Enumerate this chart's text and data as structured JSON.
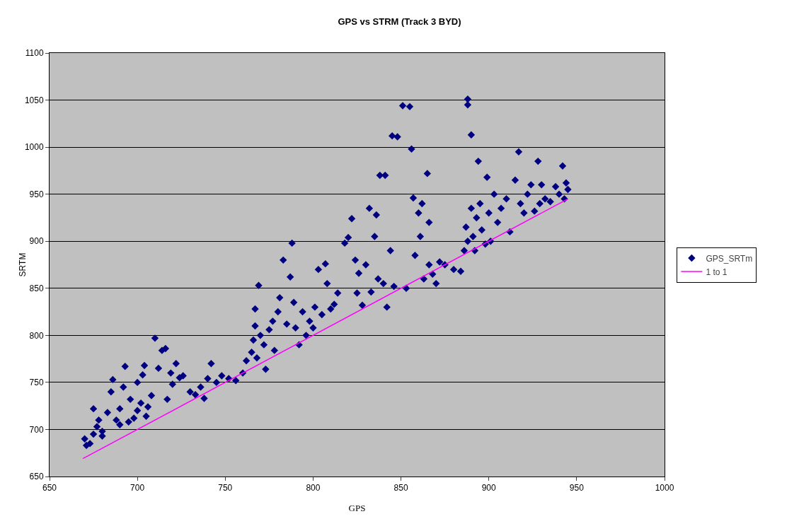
{
  "chart_data": {
    "type": "scatter",
    "title": "GPS vs STRM (Track 3 BYD)",
    "xlabel": "GPS",
    "ylabel": "SRTM",
    "xlim": [
      650,
      1000
    ],
    "xticks": [
      650,
      700,
      750,
      800,
      850,
      900,
      950,
      1000
    ],
    "ylim": [
      650,
      1100
    ],
    "yticks": [
      650,
      700,
      750,
      800,
      850,
      900,
      950,
      1000,
      1050,
      1100
    ],
    "grid": "y",
    "legend": "right",
    "marker": "diamond",
    "series": [
      {
        "name": "GPS_SRTm",
        "color": "#000080",
        "x": [
          670,
          671,
          673,
          675,
          675,
          677,
          678,
          680,
          680,
          683,
          685,
          686,
          688,
          690,
          690,
          692,
          693,
          695,
          696,
          698,
          700,
          700,
          702,
          703,
          704,
          705,
          706,
          708,
          710,
          712,
          714,
          716,
          717,
          719,
          720,
          722,
          724,
          726,
          730,
          733,
          736,
          738,
          740,
          742,
          745,
          748,
          752,
          756,
          760,
          762,
          765,
          766,
          767,
          767,
          768,
          769,
          770,
          772,
          773,
          775,
          777,
          778,
          780,
          781,
          783,
          785,
          787,
          788,
          789,
          790,
          792,
          794,
          796,
          798,
          800,
          801,
          803,
          805,
          807,
          808,
          810,
          812,
          814,
          818,
          820,
          822,
          824,
          825,
          826,
          828,
          830,
          832,
          833,
          835,
          836,
          837,
          838,
          840,
          841,
          842,
          844,
          845,
          846,
          848,
          851,
          853,
          855,
          856,
          857,
          858,
          860,
          861,
          862,
          863,
          865,
          866,
          866,
          868,
          870,
          872,
          875,
          880,
          884,
          886,
          887,
          888,
          888,
          888,
          890,
          890,
          891,
          892,
          893,
          894,
          895,
          896,
          898,
          899,
          900,
          901,
          903,
          905,
          907,
          910,
          912,
          915,
          917,
          918,
          920,
          922,
          924,
          926,
          928,
          929,
          930,
          932,
          935,
          938,
          940,
          942,
          943,
          944,
          945
        ],
        "values": [
          690,
          683,
          685,
          695,
          722,
          703,
          710,
          698,
          693,
          718,
          740,
          753,
          710,
          705,
          722,
          745,
          767,
          708,
          732,
          712,
          720,
          750,
          728,
          758,
          768,
          714,
          724,
          736,
          797,
          765,
          784,
          786,
          732,
          760,
          748,
          770,
          755,
          757,
          740,
          737,
          745,
          733,
          754,
          770,
          750,
          757,
          754,
          752,
          760,
          773,
          782,
          795,
          810,
          828,
          776,
          853,
          800,
          790,
          764,
          806,
          815,
          784,
          825,
          840,
          880,
          812,
          862,
          898,
          835,
          808,
          790,
          825,
          800,
          815,
          808,
          830,
          870,
          822,
          876,
          855,
          828,
          833,
          845,
          898,
          904,
          924,
          880,
          845,
          866,
          832,
          875,
          935,
          846,
          905,
          928,
          860,
          970,
          855,
          970,
          830,
          890,
          1012,
          852,
          1011,
          1044,
          850,
          1043,
          998,
          946,
          885,
          930,
          905,
          940,
          860,
          972,
          920,
          875,
          865,
          855,
          878,
          875,
          870,
          868,
          890,
          915,
          1045,
          1051,
          900,
          1013,
          935,
          905,
          890,
          925,
          985,
          940,
          912,
          897,
          968,
          930,
          900,
          950,
          920,
          935,
          945,
          910,
          965,
          995,
          940,
          930,
          950,
          960,
          932,
          985,
          940,
          960,
          945,
          942,
          958,
          950,
          980,
          945,
          962,
          955
        ]
      },
      {
        "name": "1 to 1",
        "color": "#ff00ff",
        "type": "line",
        "marker": "none",
        "line_style": "solid",
        "x": [
          669,
          945
        ],
        "values": [
          669,
          945
        ]
      }
    ]
  }
}
